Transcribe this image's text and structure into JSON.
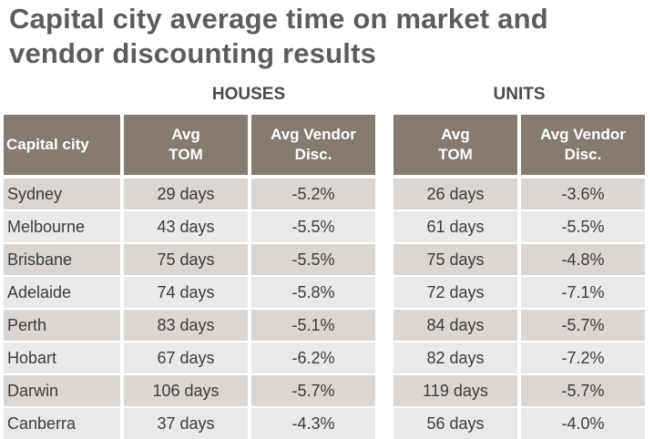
{
  "title": {
    "line1": "Capital city average time on market and",
    "line2": "vendor discounting results"
  },
  "groups": {
    "houses": "HOUSES",
    "units": "UNITS"
  },
  "headers": {
    "city": "Capital city",
    "tom_line1": "Avg",
    "tom_line2": "TOM",
    "disc_line1": "Avg Vendor",
    "disc_line2": "Disc."
  },
  "rows": [
    {
      "city": "Sydney",
      "houses_tom": "29 days",
      "houses_disc": "-5.2%",
      "units_tom": "26 days",
      "units_disc": "-3.6%"
    },
    {
      "city": "Melbourne",
      "houses_tom": "43 days",
      "houses_disc": "-5.5%",
      "units_tom": "61 days",
      "units_disc": "-5.5%"
    },
    {
      "city": "Brisbane",
      "houses_tom": "75 days",
      "houses_disc": "-5.5%",
      "units_tom": "75 days",
      "units_disc": "-4.8%"
    },
    {
      "city": "Adelaide",
      "houses_tom": "74 days",
      "houses_disc": "-5.8%",
      "units_tom": "72 days",
      "units_disc": "-7.1%"
    },
    {
      "city": "Perth",
      "houses_tom": "83 days",
      "houses_disc": "-5.1%",
      "units_tom": "84 days",
      "units_disc": "-5.7%"
    },
    {
      "city": "Hobart",
      "houses_tom": "67 days",
      "houses_disc": "-6.2%",
      "units_tom": "82 days",
      "units_disc": "-7.2%"
    },
    {
      "city": "Darwin",
      "houses_tom": "106 days",
      "houses_disc": "-5.7%",
      "units_tom": "119 days",
      "units_disc": "-5.7%"
    },
    {
      "city": "Canberra",
      "houses_tom": "37 days",
      "houses_disc": "-4.3%",
      "units_tom": "56 days",
      "units_disc": "-4.0%"
    }
  ],
  "colors": {
    "header_bg": "#857b71",
    "row_dark": "#d9d6d4",
    "row_light": "#ebe9e8",
    "title": "#5c5c5c"
  }
}
